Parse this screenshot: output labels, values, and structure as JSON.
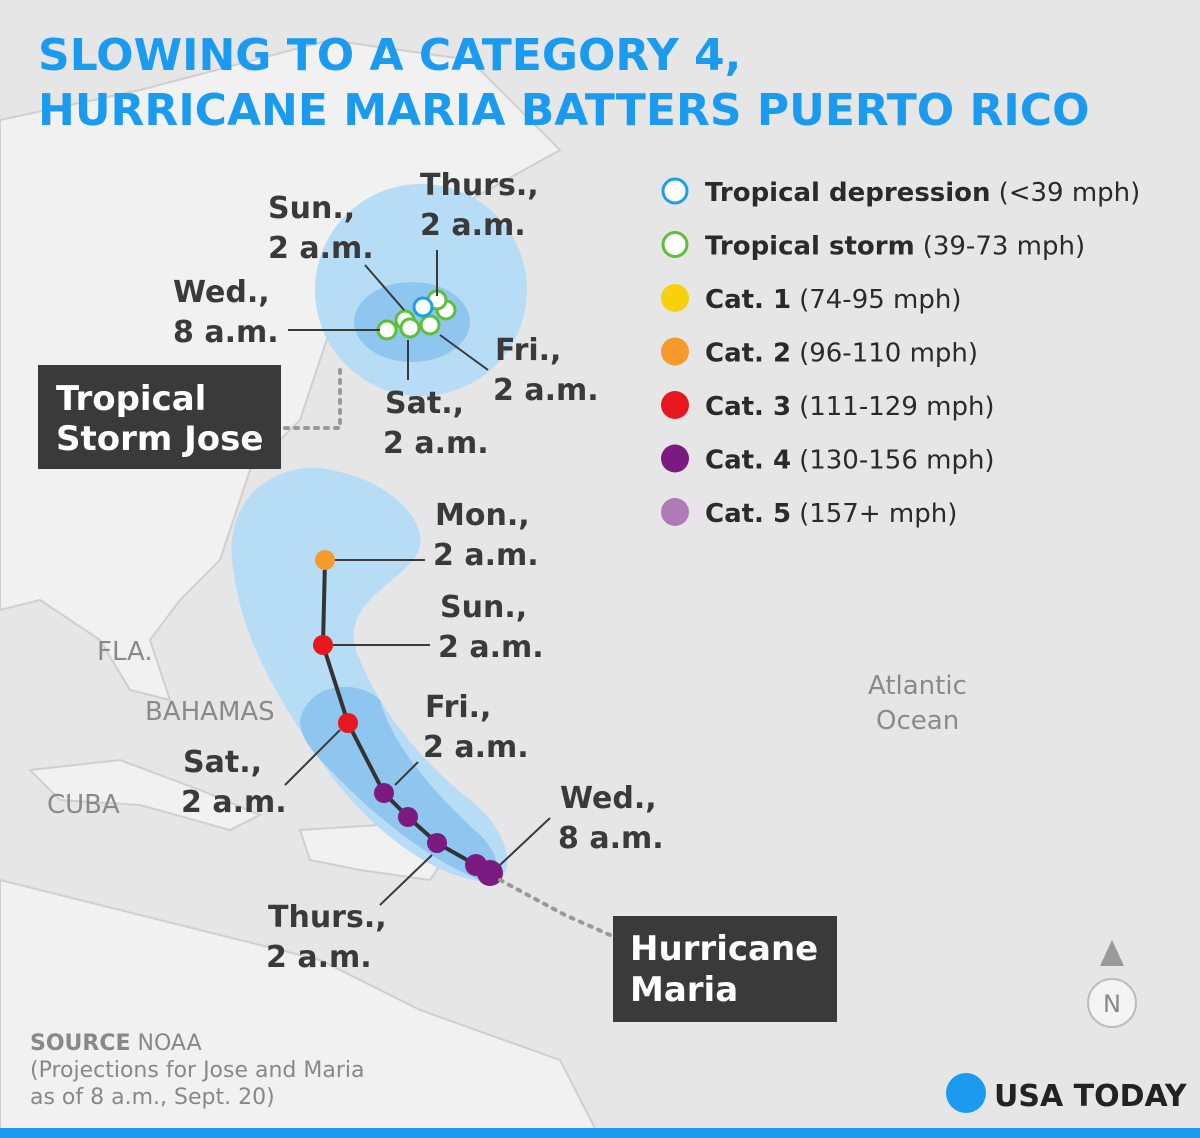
{
  "title": [
    "SLOWING TO A CATEGORY 4,",
    "HURRICANE MARIA BATTERS PUERTO RICO"
  ],
  "legend": [
    {
      "label": "Tropical depression",
      "range": "(<39 mph)",
      "color": "#1aa0e6",
      "hollow": true
    },
    {
      "label": "Tropical storm",
      "range": "(39-73 mph)",
      "color": "#5cbf3a",
      "hollow": true
    },
    {
      "label": "Cat. 1",
      "range": "(74-95 mph)",
      "color": "#f7d20c",
      "hollow": false
    },
    {
      "label": "Cat. 2",
      "range": "(96-110 mph)",
      "color": "#f59a2b",
      "hollow": false
    },
    {
      "label": "Cat. 3",
      "range": "(111-129 mph)",
      "color": "#e8171f",
      "hollow": false
    },
    {
      "label": "Cat. 4",
      "range": "(130-156 mph)",
      "color": "#7b1a80",
      "hollow": false
    },
    {
      "label": "Cat. 5",
      "range": "(157+ mph)",
      "color": "#b07ab8",
      "hollow": false
    }
  ],
  "jose": {
    "name": [
      "Tropical",
      "Storm Jose"
    ],
    "labels": [
      [
        "Thurs.,",
        "2 a.m."
      ],
      [
        "Sun.,",
        "2 a.m."
      ],
      [
        "Wed.,",
        "8 a.m."
      ],
      [
        "Fri.,",
        "2 a.m."
      ],
      [
        "Sat.,",
        "2 a.m."
      ]
    ]
  },
  "maria": {
    "name": [
      "Hurricane",
      "Maria"
    ],
    "labels": [
      [
        "Mon.,",
        "2 a.m."
      ],
      [
        "Sun.,",
        "2 a.m."
      ],
      [
        "Fri.,",
        "2 a.m."
      ],
      [
        "Sat.,",
        "2 a.m."
      ],
      [
        "Wed.,",
        "8 a.m."
      ],
      [
        "Thurs.,",
        "2 a.m."
      ]
    ]
  },
  "places": [
    "FLA.",
    "BAHAMAS",
    "CUBA",
    "Atlantic",
    "Ocean"
  ],
  "north": "N",
  "source": {
    "label": "SOURCE",
    "text": "NOAA",
    "note": [
      "(Projections for Jose and Maria",
      "as of 8 a.m., Sept. 20)"
    ]
  },
  "logo": "USA TODAY"
}
